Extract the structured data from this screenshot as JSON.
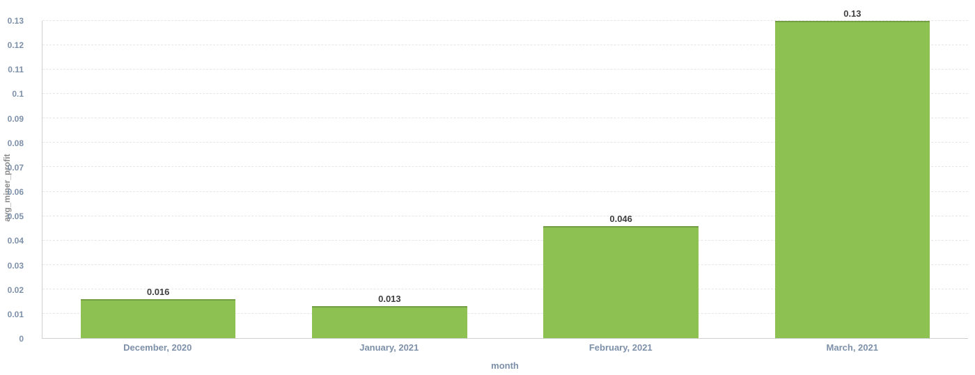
{
  "chart_data": {
    "type": "bar",
    "title": "",
    "xlabel": "month",
    "ylabel": "avg_miner_profit",
    "categories": [
      "December, 2020",
      "January, 2021",
      "February, 2021",
      "March, 2021"
    ],
    "values": [
      0.016,
      0.013,
      0.046,
      0.13
    ],
    "value_labels": [
      "0.016",
      "0.013",
      "0.046",
      "0.13"
    ],
    "ylim": [
      0,
      0.13
    ],
    "yticks": [
      0,
      0.01,
      0.02,
      0.03,
      0.04,
      0.05,
      0.06,
      0.07,
      0.08,
      0.09,
      0.1,
      0.11,
      0.12,
      0.13
    ],
    "ytick_labels": [
      "0",
      "0.01",
      "0.02",
      "0.03",
      "0.04",
      "0.05",
      "0.06",
      "0.07",
      "0.08",
      "0.09",
      "0.1",
      "0.11",
      "0.12",
      "0.13"
    ],
    "grid": "horizontal-dashed",
    "legend": "none",
    "colors": {
      "bar": "#8dc152",
      "axis_text": "#7d90a9",
      "value_label": "#3f3f3f",
      "gridline": "#e6e6e6",
      "axis_line": "#cfcfcf",
      "ylabel_text": "#8a8a8a",
      "background": "#ffffff"
    }
  }
}
